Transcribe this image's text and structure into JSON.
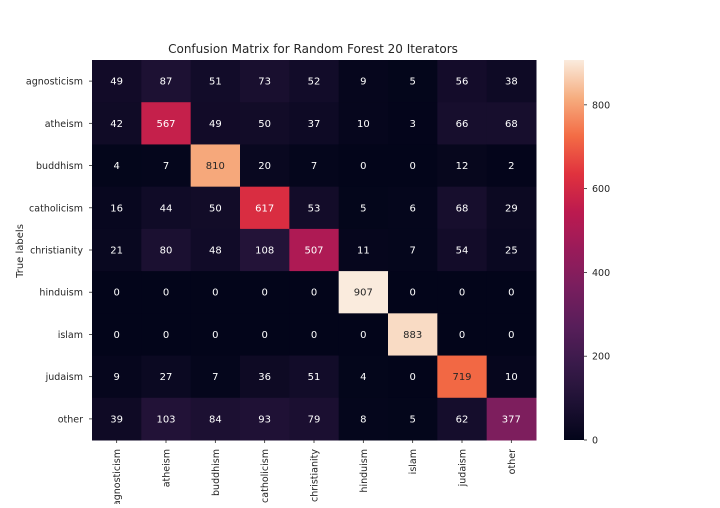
{
  "chart_data": {
    "type": "heatmap",
    "title": "Confusion Matrix for Random Forest 20 Iterators",
    "ylabel": "True labels",
    "xlabel": "",
    "row_labels": [
      "agnosticism",
      "atheism",
      "buddhism",
      "catholicism",
      "christianity",
      "hinduism",
      "islam",
      "judaism",
      "other"
    ],
    "col_labels": [
      "agnosticism",
      "atheism",
      "buddhism",
      "catholicism",
      "christianity",
      "hinduism",
      "islam",
      "judaism",
      "other"
    ],
    "values": [
      [
        49,
        87,
        51,
        73,
        52,
        9,
        5,
        56,
        38
      ],
      [
        42,
        567,
        49,
        50,
        37,
        10,
        3,
        66,
        68
      ],
      [
        4,
        7,
        810,
        20,
        7,
        0,
        0,
        12,
        2
      ],
      [
        16,
        44,
        50,
        617,
        53,
        5,
        6,
        68,
        29
      ],
      [
        21,
        80,
        48,
        108,
        507,
        11,
        7,
        54,
        25
      ],
      [
        0,
        0,
        0,
        0,
        0,
        907,
        0,
        0,
        0
      ],
      [
        0,
        0,
        0,
        0,
        0,
        0,
        883,
        0,
        0
      ],
      [
        9,
        27,
        7,
        36,
        51,
        4,
        0,
        719,
        10
      ],
      [
        39,
        103,
        84,
        93,
        79,
        8,
        5,
        62,
        377
      ]
    ],
    "colorbar": {
      "min": 0,
      "max": 907,
      "ticks": [
        0,
        200,
        400,
        600,
        800
      ],
      "colormap": "rocket"
    }
  }
}
